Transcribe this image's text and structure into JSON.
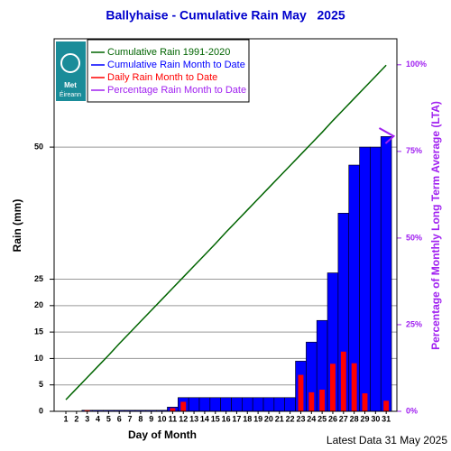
{
  "chart_data": {
    "type": "bar",
    "title": "Ballyhaise - Cumulative Rain May   2025",
    "xlabel": "Day of Month",
    "ylabel": "Rain (mm)",
    "y2label": "Percentage  of Monthly Long Term Average (LTA)",
    "footer": "Latest Data 31 May 2025",
    "logo": [
      "Met",
      "Éireann"
    ],
    "x": [
      1,
      2,
      3,
      4,
      5,
      6,
      7,
      8,
      9,
      10,
      11,
      12,
      13,
      14,
      15,
      16,
      17,
      18,
      19,
      20,
      21,
      22,
      23,
      24,
      25,
      26,
      27,
      28,
      29,
      30,
      31
    ],
    "xlim": [
      -0.1,
      32
    ],
    "ylim": [
      0,
      70.5
    ],
    "yticks": [
      0,
      5,
      10,
      15,
      20,
      25,
      50
    ],
    "y2lim": [
      0,
      107.5
    ],
    "y2ticks": [
      {
        "value": 0,
        "label": "0%"
      },
      {
        "value": 25,
        "label": "25%"
      },
      {
        "value": 50,
        "label": "50%"
      },
      {
        "value": 75,
        "label": "75%"
      },
      {
        "value": 100,
        "label": "100%"
      }
    ],
    "grid": true,
    "series": [
      {
        "name": "Cumulative Rain 1991-2020",
        "color": "#006400",
        "type": "line",
        "values": [
          2.2,
          4.3,
          6.4,
          8.5,
          10.6,
          12.8,
          14.9,
          17.0,
          19.1,
          21.2,
          23.3,
          25.4,
          27.5,
          29.6,
          31.7,
          33.9,
          36.0,
          38.1,
          40.2,
          42.3,
          44.4,
          46.5,
          48.6,
          50.7,
          52.8,
          55.0,
          57.1,
          59.2,
          61.3,
          63.4,
          65.5
        ]
      },
      {
        "name": "Cumulative Rain Month to Date",
        "color": "#0000ff",
        "type": "bar",
        "values": [
          0,
          0,
          0.2,
          0.2,
          0.2,
          0.2,
          0.2,
          0.2,
          0.2,
          0.2,
          0.8,
          2.6,
          2.6,
          2.6,
          2.6,
          2.6,
          2.6,
          2.6,
          2.6,
          2.6,
          2.6,
          2.6,
          9.5,
          13.1,
          17.2,
          26.2,
          37.5,
          46.6,
          50.0,
          50.0,
          52.0
        ]
      },
      {
        "name": "Daily Rain Month to Date",
        "color": "#ff0000",
        "type": "bar",
        "values": [
          0,
          0,
          0.2,
          0,
          0,
          0,
          0,
          0,
          0,
          0,
          0.6,
          1.8,
          0,
          0,
          0,
          0,
          0,
          0,
          0,
          0,
          0,
          0,
          6.9,
          3.6,
          4.1,
          9.0,
          11.3,
          9.1,
          3.4,
          0,
          2.0
        ]
      },
      {
        "name": "Percentage Rain Month to Date",
        "color": "#a020f0",
        "type": "marker",
        "axis": "y2",
        "values": [
          null,
          null,
          null,
          null,
          null,
          null,
          null,
          null,
          null,
          null,
          null,
          null,
          null,
          null,
          null,
          null,
          null,
          null,
          null,
          null,
          null,
          null,
          null,
          null,
          null,
          null,
          null,
          null,
          null,
          null,
          79.4
        ]
      }
    ]
  }
}
